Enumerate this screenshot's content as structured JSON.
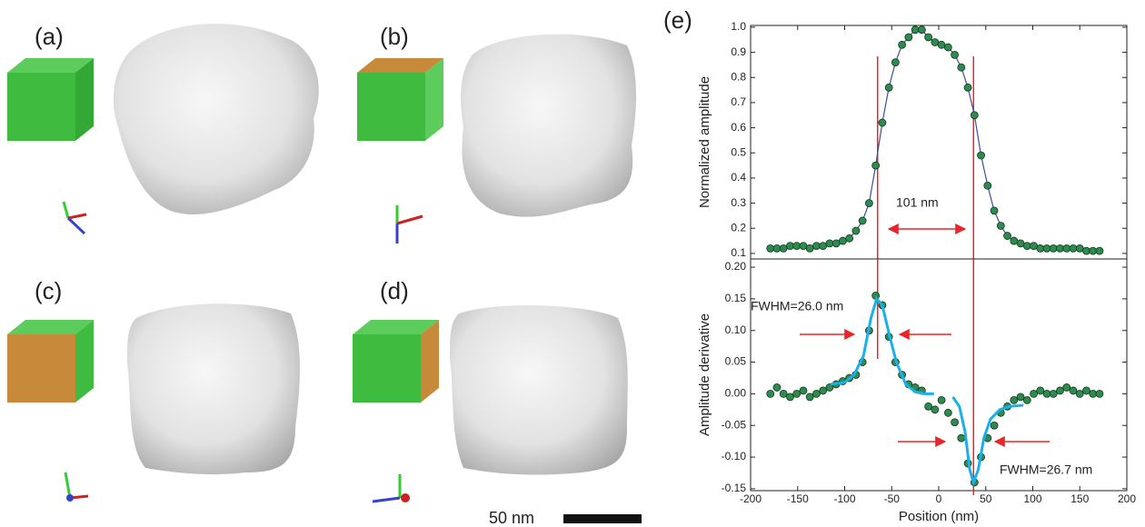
{
  "panels": [
    {
      "label": "(a)"
    },
    {
      "label": "(b)"
    },
    {
      "label": "(c)"
    },
    {
      "label": "(d)"
    },
    {
      "label": "(e)"
    }
  ],
  "scale_bar": {
    "label": "50 nm"
  },
  "chart_data": [
    {
      "type": "line",
      "ylabel": "Normalized amplitude",
      "xlim": [
        -200,
        200
      ],
      "ylim": [
        0.078,
        1.007
      ],
      "yticks": [
        0.1,
        0.2,
        0.3,
        0.4,
        0.5,
        0.6,
        0.7,
        0.8,
        0.9,
        {
          "value": 1,
          "label": "1.0"
        }
      ],
      "vlines": [
        -65,
        37
      ],
      "annotations": [
        {
          "text": "101 nm"
        }
      ],
      "series": [
        {
          "mode": "lines+markers",
          "color": "#2e8b4f",
          "line_color": "#3b4fa0",
          "x": [
            -179,
            -172,
            -165,
            -158,
            -151,
            -144,
            -137,
            -130,
            -123,
            -116,
            -109,
            -102,
            -95,
            -88,
            -81,
            -74,
            -67,
            -60,
            -53,
            -46,
            -39,
            -32,
            -25,
            -18,
            -11,
            -4,
            3,
            10,
            17,
            24,
            31,
            38,
            45,
            52,
            59,
            66,
            73,
            80,
            87,
            94,
            101,
            108,
            115,
            122,
            129,
            136,
            143,
            150,
            157,
            164,
            171
          ],
          "values": [
            0.12,
            0.12,
            0.12,
            0.13,
            0.13,
            0.13,
            0.12,
            0.13,
            0.13,
            0.14,
            0.14,
            0.15,
            0.16,
            0.19,
            0.23,
            0.3,
            0.45,
            0.62,
            0.76,
            0.86,
            0.93,
            0.96,
            0.99,
            0.99,
            0.96,
            0.94,
            0.93,
            0.92,
            0.89,
            0.84,
            0.76,
            0.65,
            0.49,
            0.37,
            0.27,
            0.21,
            0.17,
            0.15,
            0.14,
            0.13,
            0.13,
            0.12,
            0.12,
            0.12,
            0.12,
            0.12,
            0.12,
            0.12,
            0.11,
            0.11,
            0.11
          ]
        }
      ]
    },
    {
      "type": "scatter",
      "xlabel": "Position (nm)",
      "ylabel": "Amplitude derivative",
      "xlim": [
        -200,
        200
      ],
      "ylim": [
        -0.153,
        0.213
      ],
      "xticks": [
        -200,
        -150,
        -100,
        -50,
        0,
        50,
        100,
        150,
        200
      ],
      "yticks": [
        -0.15,
        {
          "value": -0.1,
          "label": "-0.10"
        },
        -0.05,
        {
          "value": 0,
          "label": "0.00"
        },
        0.05,
        {
          "value": 0.1,
          "label": "0.10"
        },
        0.15,
        {
          "value": 0.2,
          "label": "0.20"
        }
      ],
      "vlines": [
        -65,
        37
      ],
      "annotations": [
        {
          "text": "FWHM=26.0 nm"
        },
        {
          "text": "FWHM=26.7 nm"
        }
      ],
      "series": [
        {
          "mode": "markers",
          "color": "#2e8b4f",
          "x": [
            -179,
            -172,
            -165,
            -158,
            -151,
            -144,
            -137,
            -130,
            -123,
            -116,
            -109,
            -102,
            -95,
            -88,
            -81,
            -74,
            -67,
            -60,
            -53,
            -46,
            -39,
            -32,
            -25,
            -18,
            -11,
            -4,
            3,
            10,
            17,
            24,
            31,
            38,
            45,
            52,
            59,
            66,
            73,
            80,
            87,
            94,
            101,
            108,
            115,
            122,
            129,
            136,
            143,
            150,
            157,
            164,
            171
          ],
          "values": [
            0.0,
            0.01,
            0.0,
            -0.005,
            0.0,
            0.005,
            -0.005,
            0.0,
            0.005,
            0.01,
            0.015,
            0.02,
            0.025,
            0.03,
            0.05,
            0.1,
            0.155,
            0.14,
            0.09,
            0.05,
            0.03,
            0.015,
            0.01,
            0.005,
            -0.02,
            -0.025,
            -0.01,
            -0.03,
            -0.045,
            -0.07,
            -0.11,
            -0.14,
            -0.1,
            -0.07,
            -0.05,
            -0.03,
            -0.02,
            -0.01,
            -0.005,
            -0.01,
            0.0,
            0.005,
            0.0,
            0.0,
            0.005,
            0.01,
            0.005,
            0.0,
            0.005,
            0.0,
            0.0
          ]
        },
        {
          "mode": "lines",
          "line_color": "#1ab0e8",
          "x": [
            -115,
            -100,
            -90,
            -80,
            -72,
            -66,
            -60,
            -52,
            -45,
            -35,
            -25,
            -15,
            -5
          ],
          "values": [
            0.015,
            0.018,
            0.03,
            0.06,
            0.12,
            0.15,
            0.14,
            0.09,
            0.05,
            0.015,
            0.003,
            0.0,
            0.0
          ]
        },
        {
          "mode": "lines",
          "line_color": "#1ab0e8",
          "x": [
            15,
            22,
            28,
            33,
            37,
            42,
            48,
            55,
            65,
            75,
            90
          ],
          "values": [
            -0.005,
            -0.02,
            -0.06,
            -0.12,
            -0.14,
            -0.12,
            -0.07,
            -0.04,
            -0.025,
            -0.02,
            -0.018
          ]
        }
      ]
    }
  ]
}
